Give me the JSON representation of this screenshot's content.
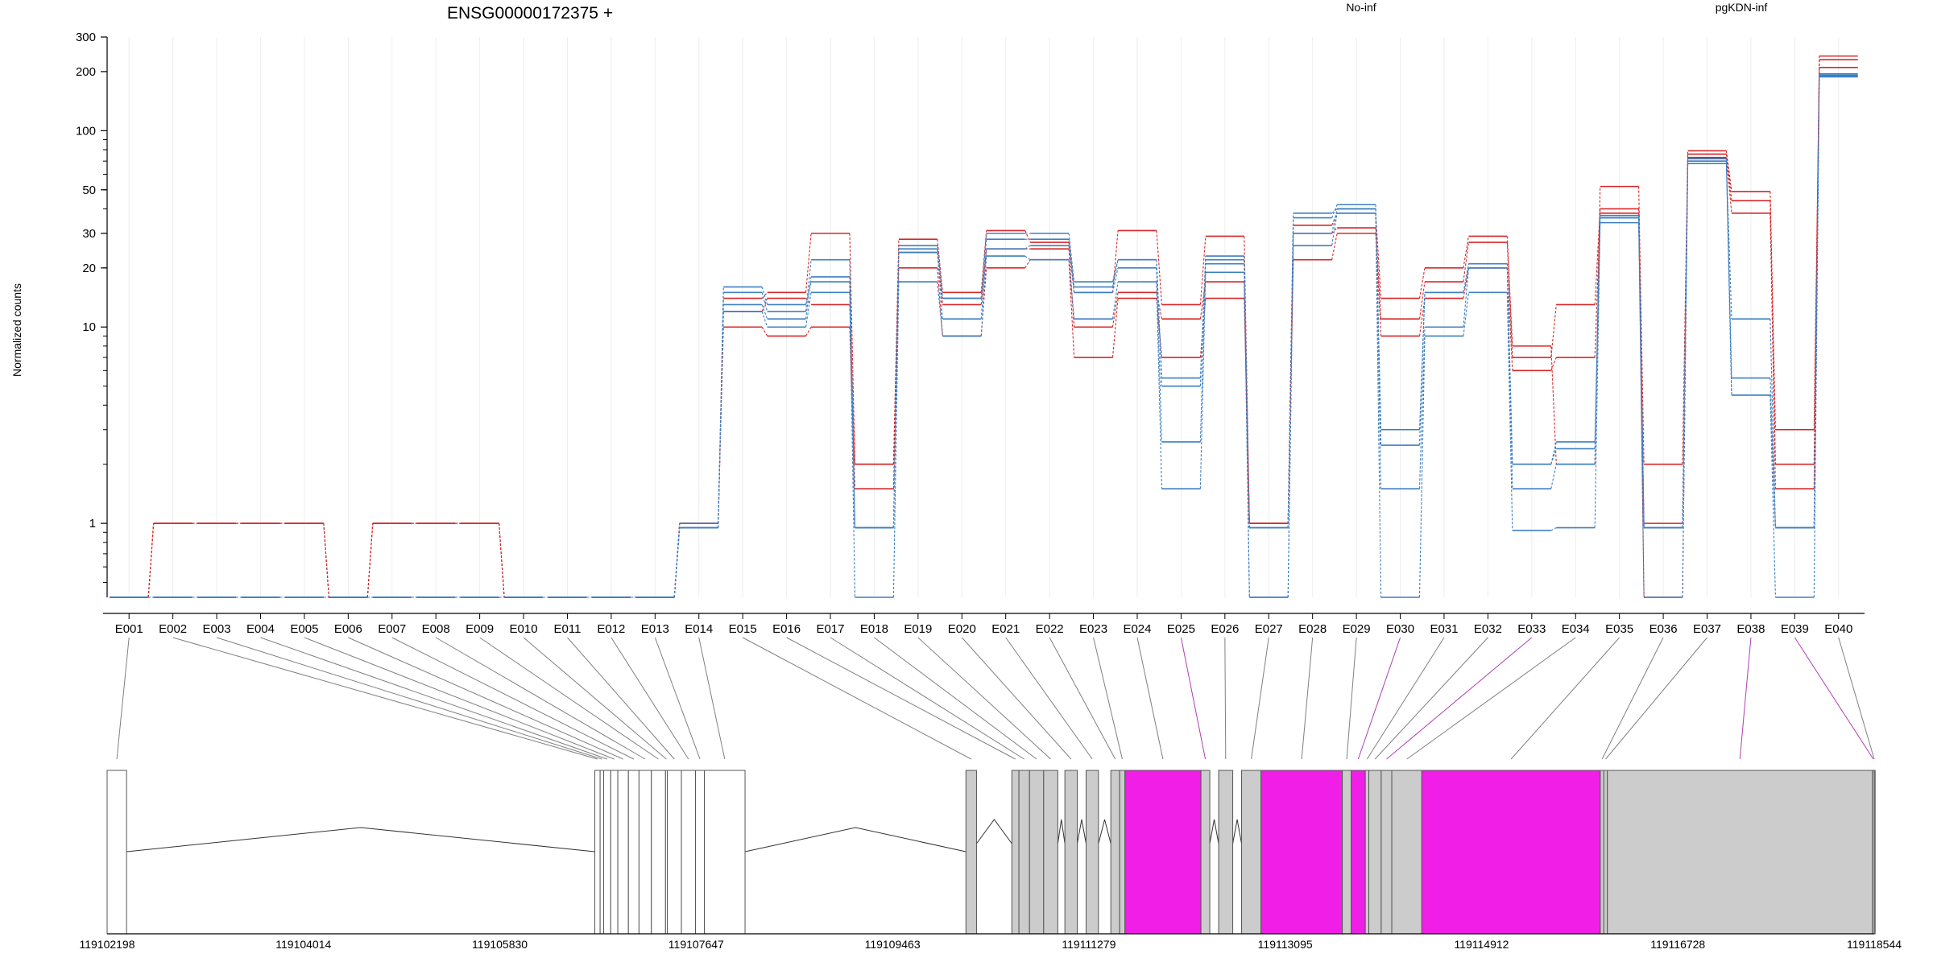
{
  "chart_data": {
    "type": "line",
    "title": "ENSG00000172375 +",
    "ylabel": "Normalized counts",
    "y_scale": "log",
    "ylim": [
      0.42,
      300
    ],
    "y_ticks": [
      1,
      10,
      20,
      30,
      50,
      100,
      200,
      300
    ],
    "grid": "vertical",
    "legend_placement": "top-right",
    "legend": [
      {
        "label": "No-inf",
        "color": "#d62728"
      },
      {
        "label": "pgKDN-inf",
        "color": "#3d7fc1"
      }
    ],
    "categories": [
      "E001",
      "E002",
      "E003",
      "E004",
      "E005",
      "E006",
      "E007",
      "E008",
      "E009",
      "E010",
      "E011",
      "E012",
      "E013",
      "E014",
      "E015",
      "E016",
      "E017",
      "E018",
      "E019",
      "E020",
      "E021",
      "E022",
      "E023",
      "E024",
      "E025",
      "E026",
      "E027",
      "E028",
      "E029",
      "E030",
      "E031",
      "E032",
      "E033",
      "E034",
      "E035",
      "E036",
      "E037",
      "E038",
      "E039",
      "E040"
    ],
    "floor_value": 0.42,
    "series": [
      {
        "group": "No-inf",
        "color": "#d62728",
        "values": [
          0.42,
          1,
          1,
          1,
          1,
          0.42,
          1,
          1,
          1,
          0.42,
          0.42,
          0.42,
          0.42,
          1,
          10,
          9,
          10,
          1.5,
          20,
          9,
          20,
          22,
          7,
          14,
          7,
          14,
          1,
          22,
          30,
          9,
          14,
          20,
          6,
          7,
          38,
          0.42,
          73,
          38,
          1.5,
          240
        ]
      },
      {
        "group": "No-inf",
        "color": "#d62728",
        "values": [
          0.42,
          1,
          1,
          1,
          1,
          0.42,
          1,
          1,
          1,
          0.42,
          0.42,
          0.42,
          0.42,
          1,
          12,
          14,
          13,
          2,
          24,
          13,
          25,
          25,
          10,
          15,
          11,
          17,
          1,
          30,
          32,
          11,
          17,
          27,
          7,
          13,
          40,
          1,
          76,
          44,
          2,
          230
        ]
      },
      {
        "group": "No-inf",
        "color": "#d62728",
        "values": [
          0.42,
          1,
          1,
          1,
          1,
          0.42,
          1,
          1,
          1,
          0.42,
          0.42,
          0.42,
          0.42,
          1,
          14,
          15,
          30,
          2,
          28,
          15,
          31,
          27,
          15,
          31,
          13,
          29,
          1,
          33,
          38,
          14,
          20,
          29,
          8,
          2,
          52,
          2,
          79,
          49,
          3,
          210
        ]
      },
      {
        "group": "pgKDN-inf",
        "color": "#3d7fc1",
        "values": [
          0.42,
          0.42,
          0.42,
          0.42,
          0.42,
          0.42,
          0.42,
          0.42,
          0.42,
          0.42,
          0.42,
          0.42,
          0.42,
          1,
          12,
          10,
          15,
          0.42,
          17,
          9,
          23,
          22,
          11,
          17,
          1.5,
          19,
          0.42,
          26,
          38,
          0.42,
          9,
          15,
          0.92,
          0.95,
          34,
          0.42,
          68,
          4.5,
          0.42,
          188
        ]
      },
      {
        "group": "pgKDN-inf",
        "color": "#3d7fc1",
        "values": [
          0.42,
          0.42,
          0.42,
          0.42,
          0.42,
          0.42,
          0.42,
          0.42,
          0.42,
          0.42,
          0.42,
          0.42,
          0.42,
          0.95,
          13,
          11,
          18,
          0.95,
          24,
          11,
          25,
          26,
          15,
          20,
          2.6,
          21,
          0.42,
          30,
          40,
          1.5,
          10,
          20,
          1.5,
          2,
          36,
          0.95,
          70,
          5.5,
          0.95,
          190
        ]
      },
      {
        "group": "pgKDN-inf",
        "color": "#3d7fc1",
        "values": [
          0.42,
          0.42,
          0.42,
          0.42,
          0.42,
          0.42,
          0.42,
          0.42,
          0.42,
          0.42,
          0.42,
          0.42,
          0.42,
          0.95,
          15,
          12,
          22,
          0.95,
          25,
          14,
          28,
          28,
          16,
          22,
          5,
          22,
          0.95,
          36,
          42,
          2.5,
          15,
          20,
          2,
          2.4,
          36,
          0.95,
          70,
          11,
          0.95,
          192
        ]
      },
      {
        "group": "pgKDN-inf",
        "color": "#3d7fc1",
        "values": [
          0.42,
          0.42,
          0.42,
          0.42,
          0.42,
          0.42,
          0.42,
          0.42,
          0.42,
          0.42,
          0.42,
          0.42,
          0.42,
          0.95,
          16,
          13,
          17,
          0.95,
          26,
          14,
          30,
          30,
          17,
          22,
          5.5,
          23,
          0.95,
          38,
          40,
          3,
          15,
          21,
          2,
          2.6,
          37,
          0.95,
          72,
          4.5,
          0.95,
          195
        ]
      }
    ],
    "gene_model": {
      "coordinate_ticks": [
        "119102198",
        "119104014",
        "119105830",
        "119107647",
        "119109463",
        "119111279",
        "119113095",
        "119114912",
        "119116728",
        "119118544"
      ],
      "exon_bins": [
        {
          "start": 0.0,
          "end": 0.011,
          "fill": "#ffffff"
        },
        {
          "start": 0.276,
          "end": 0.279,
          "fill": "#ffffff"
        },
        {
          "start": 0.279,
          "end": 0.281,
          "fill": "#ffffff"
        },
        {
          "start": 0.281,
          "end": 0.285,
          "fill": "#ffffff"
        },
        {
          "start": 0.285,
          "end": 0.289,
          "fill": "#ffffff"
        },
        {
          "start": 0.289,
          "end": 0.295,
          "fill": "#ffffff"
        },
        {
          "start": 0.295,
          "end": 0.301,
          "fill": "#ffffff"
        },
        {
          "start": 0.301,
          "end": 0.308,
          "fill": "#ffffff"
        },
        {
          "start": 0.308,
          "end": 0.316,
          "fill": "#ffffff"
        },
        {
          "start": 0.316,
          "end": 0.317,
          "fill": "#ffffff"
        },
        {
          "start": 0.317,
          "end": 0.325,
          "fill": "#ffffff"
        },
        {
          "start": 0.325,
          "end": 0.333,
          "fill": "#ffffff"
        },
        {
          "start": 0.333,
          "end": 0.338,
          "fill": "#ffffff"
        },
        {
          "start": 0.338,
          "end": 0.361,
          "fill": "#ffffff"
        },
        {
          "start": 0.486,
          "end": 0.492,
          "fill": "#cccccc"
        },
        {
          "start": 0.512,
          "end": 0.516,
          "fill": "#cccccc"
        },
        {
          "start": 0.516,
          "end": 0.522,
          "fill": "#cccccc"
        },
        {
          "start": 0.522,
          "end": 0.53,
          "fill": "#cccccc"
        },
        {
          "start": 0.53,
          "end": 0.538,
          "fill": "#cccccc"
        },
        {
          "start": 0.542,
          "end": 0.549,
          "fill": "#cccccc"
        },
        {
          "start": 0.554,
          "end": 0.561,
          "fill": "#cccccc"
        },
        {
          "start": 0.568,
          "end": 0.573,
          "fill": "#cccccc"
        },
        {
          "start": 0.573,
          "end": 0.576,
          "fill": "#cccccc"
        },
        {
          "start": 0.576,
          "end": 0.619,
          "fill": "#f01ee6"
        },
        {
          "start": 0.619,
          "end": 0.624,
          "fill": "#cccccc"
        },
        {
          "start": 0.629,
          "end": 0.637,
          "fill": "#cccccc"
        },
        {
          "start": 0.642,
          "end": 0.653,
          "fill": "#cccccc"
        },
        {
          "start": 0.653,
          "end": 0.699,
          "fill": "#f01ee6"
        },
        {
          "start": 0.699,
          "end": 0.704,
          "fill": "#cccccc"
        },
        {
          "start": 0.704,
          "end": 0.712,
          "fill": "#f01ee6"
        },
        {
          "start": 0.712,
          "end": 0.714,
          "fill": "#cccccc"
        },
        {
          "start": 0.714,
          "end": 0.721,
          "fill": "#cccccc"
        },
        {
          "start": 0.721,
          "end": 0.727,
          "fill": "#cccccc"
        },
        {
          "start": 0.727,
          "end": 0.744,
          "fill": "#cccccc"
        },
        {
          "start": 0.744,
          "end": 0.845,
          "fill": "#f01ee6"
        },
        {
          "start": 0.845,
          "end": 0.847,
          "fill": "#cccccc"
        },
        {
          "start": 0.847,
          "end": 0.849,
          "fill": "#cccccc"
        },
        {
          "start": 0.849,
          "end": 0.999,
          "fill": "#cccccc"
        },
        {
          "start": 0.999,
          "end": 1.0,
          "fill": "#cccccc"
        },
        {
          "start": 1.0,
          "end": 1.0,
          "fill": "#cccccc"
        }
      ],
      "connector_colors": [
        "#808080",
        "#808080",
        "#808080",
        "#808080",
        "#808080",
        "#808080",
        "#808080",
        "#808080",
        "#808080",
        "#808080",
        "#808080",
        "#808080",
        "#808080",
        "#808080",
        "#808080",
        "#808080",
        "#808080",
        "#808080",
        "#808080",
        "#808080",
        "#808080",
        "#808080",
        "#808080",
        "#808080",
        "#b03fb0",
        "#808080",
        "#808080",
        "#808080",
        "#808080",
        "#b03fb0",
        "#808080",
        "#808080",
        "#b03fb0",
        "#808080",
        "#808080",
        "#808080",
        "#808080",
        "#b03fb0",
        "#b03fb0",
        "#808080"
      ],
      "intron_color": "#333333",
      "box_stroke": "#555555"
    }
  }
}
